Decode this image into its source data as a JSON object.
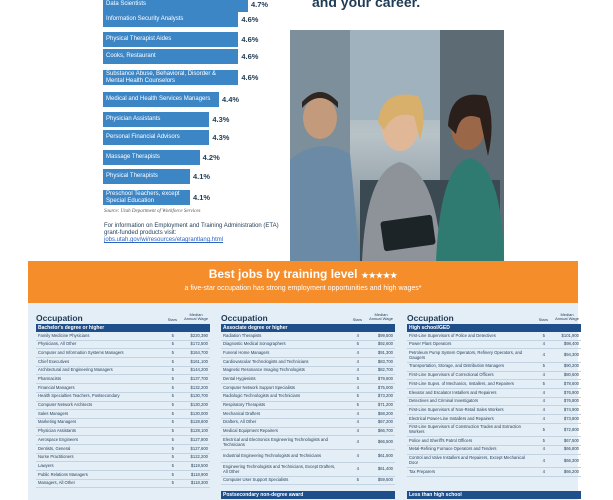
{
  "top_heading": "and your career.",
  "wage_growth_chart": {
    "bars": [
      {
        "label": "Data Scientists",
        "value": "4.7%"
      },
      {
        "label": "Information Security Analysts",
        "value": "4.6%"
      },
      {
        "label": "Physical Therapist Aides",
        "value": "4.6%"
      },
      {
        "label": "Cooks, Restaurant",
        "value": "4.6%"
      },
      {
        "label": "Substance Abuse, Behavioral, Disorder & Mental Health Counselors",
        "value": "4.6%"
      },
      {
        "label": "Medical and Health Services Managers",
        "value": "4.4%"
      },
      {
        "label": "Physician Assistants",
        "value": "4.3%"
      },
      {
        "label": "Personal Financial Advisors",
        "value": "4.3%"
      },
      {
        "label": "Massage Therapists",
        "value": "4.2%"
      },
      {
        "label": "Physical Therapists",
        "value": "4.1%"
      },
      {
        "label": "Preschool Teachers, except Special Education",
        "value": "4.1%"
      }
    ]
  },
  "source": "Source: Utah Department of Workforce Services",
  "info": {
    "text": "For information on Employment and Training Administration (ETA) grant-funded products visit:",
    "link": "jobs.utah.gov/wi/resources/etagrantlang.html"
  },
  "colors": {
    "bar": "#3d86c6",
    "banner": "#f58d2a",
    "section_header": "#1f4f8a",
    "table_bg": "#e4eef7"
  },
  "banner": {
    "title": "Best jobs by training level",
    "stars": "★★★★★",
    "subtitle": "a five-star occupation has strong employment opportunities and high wages*"
  },
  "tables": {
    "stars_header": "Stars",
    "wage_header": "Median Annual Wage",
    "columns": [
      {
        "title": "Occupation",
        "section": "Bachelor's degree or higher",
        "rows": [
          {
            "name": "Family Medicine Physicians",
            "stars": "5",
            "wage": "$220,390"
          },
          {
            "name": "Physicians, All Other",
            "stars": "5",
            "wage": "$172,500"
          },
          {
            "name": "Computer and Information Systems Managers",
            "stars": "5",
            "wage": "$164,700"
          },
          {
            "name": "Chief Executives",
            "stars": "5",
            "wage": "$161,100"
          },
          {
            "name": "Architectural and Engineering Managers",
            "stars": "5",
            "wage": "$144,200"
          },
          {
            "name": "Pharmacists",
            "stars": "5",
            "wage": "$137,700"
          },
          {
            "name": "Financial Managers",
            "stars": "5",
            "wage": "$132,200"
          },
          {
            "name": "Health Specialties Teachers, Postsecondary",
            "stars": "5",
            "wage": "$130,700"
          },
          {
            "name": "Computer Network Architects",
            "stars": "5",
            "wage": "$130,200"
          },
          {
            "name": "Sales Managers",
            "stars": "5",
            "wage": "$130,000"
          },
          {
            "name": "Marketing Managers",
            "stars": "5",
            "wage": "$128,800"
          },
          {
            "name": "Physician Assistants",
            "stars": "5",
            "wage": "$128,100"
          },
          {
            "name": "Aerospace Engineers",
            "stars": "5",
            "wage": "$127,800"
          },
          {
            "name": "Dentists, General",
            "stars": "5",
            "wage": "$127,600"
          },
          {
            "name": "Nurse Practitioners",
            "stars": "5",
            "wage": "$122,200"
          },
          {
            "name": "Lawyers",
            "stars": "5",
            "wage": "$119,500"
          },
          {
            "name": "Public Relations Managers",
            "stars": "5",
            "wage": "$118,900"
          },
          {
            "name": "Managers, All Other",
            "stars": "5",
            "wage": "$118,300"
          }
        ]
      },
      {
        "title": "Occupation",
        "section": "Associate degree or higher",
        "bottom_section": "Postsecondary non-degree award",
        "rows": [
          {
            "name": "Radiation Therapists",
            "stars": "4",
            "wage": "$99,500"
          },
          {
            "name": "Diagnostic Medical Sonographers",
            "stars": "5",
            "wage": "$92,600"
          },
          {
            "name": "Funeral Home Managers",
            "stars": "4",
            "wage": "$91,300"
          },
          {
            "name": "Cardiovascular Technologists and Technicians",
            "stars": "4",
            "wage": "$83,700"
          },
          {
            "name": "Magnetic Resonance Imaging Technologists",
            "stars": "4",
            "wage": "$82,700"
          },
          {
            "name": "Dental Hygienists",
            "stars": "5",
            "wage": "$79,600"
          },
          {
            "name": "Computer Network Support Specialists",
            "stars": "4",
            "wage": "$75,000"
          },
          {
            "name": "Radiologic Technologists and Technicians",
            "stars": "5",
            "wage": "$73,200"
          },
          {
            "name": "Respiratory Therapists",
            "stars": "5",
            "wage": "$71,200"
          },
          {
            "name": "Mechanical Drafters",
            "stars": "4",
            "wage": "$68,200"
          },
          {
            "name": "Drafters, All Other",
            "stars": "4",
            "wage": "$67,200"
          },
          {
            "name": "Medical Equipment Repairers",
            "stars": "4",
            "wage": "$66,700"
          },
          {
            "name": "Electrical and Electronics Engineering Technologists and Technicians",
            "stars": "4",
            "wage": "$66,500",
            "tall": true
          },
          {
            "name": "Industrial Engineering Technologists and Technicians",
            "stars": "4",
            "wage": "$61,500",
            "tall": true
          },
          {
            "name": "Engineering Technologists and Technicians, Except Drafters, All Other",
            "stars": "4",
            "wage": "$61,400",
            "tall": true
          },
          {
            "name": "Computer User Support Specialists",
            "stars": "5",
            "wage": "$59,500"
          }
        ]
      },
      {
        "title": "Occupation",
        "section": "High school/GED",
        "bottom_section": "Less than high school",
        "rows": [
          {
            "name": "First-Line Supervisors of Police and Detectives",
            "stars": "5",
            "wage": "$101,900"
          },
          {
            "name": "Power Plant Operators",
            "stars": "4",
            "wage": "$98,400"
          },
          {
            "name": "Petroleum Pump System Operators, Refinery Operators, and Gaugers",
            "stars": "4",
            "wage": "$94,300",
            "tall": true
          },
          {
            "name": "Transportation, Storage, and Distribution Managers",
            "stars": "5",
            "wage": "$90,200"
          },
          {
            "name": "First-Line Supervisors of Correctional Officers",
            "stars": "4",
            "wage": "$80,600"
          },
          {
            "name": "First-Line Supvs. of Mechanics, Installers, and Repairers",
            "stars": "5",
            "wage": "$78,600"
          },
          {
            "name": "Elevator and Escalator Installers and Repairers",
            "stars": "4",
            "wage": "$76,900"
          },
          {
            "name": "Detectives and Criminal Investigators",
            "stars": "4",
            "wage": "$76,800"
          },
          {
            "name": "First-Line Supervisors of Non-Retail Sales Workers",
            "stars": "4",
            "wage": "$74,900"
          },
          {
            "name": "Electrical Power-Line Installers and Repairers",
            "stars": "4",
            "wage": "$73,800"
          },
          {
            "name": "First-Line Supervisors of Construction Trades and Extraction Workers",
            "stars": "5",
            "wage": "$72,800",
            "tall": true
          },
          {
            "name": "Police and Sheriff's Patrol Officers",
            "stars": "5",
            "wage": "$67,500"
          },
          {
            "name": "Metal-Refining Furnace Operators and Tenders",
            "stars": "4",
            "wage": "$66,800"
          },
          {
            "name": "Control and Valve Installers and Repairers, Except Mechanical Door",
            "stars": "4",
            "wage": "$66,300",
            "tall": true
          },
          {
            "name": "Tax Preparers",
            "stars": "4",
            "wage": "$66,200"
          }
        ]
      }
    ]
  }
}
